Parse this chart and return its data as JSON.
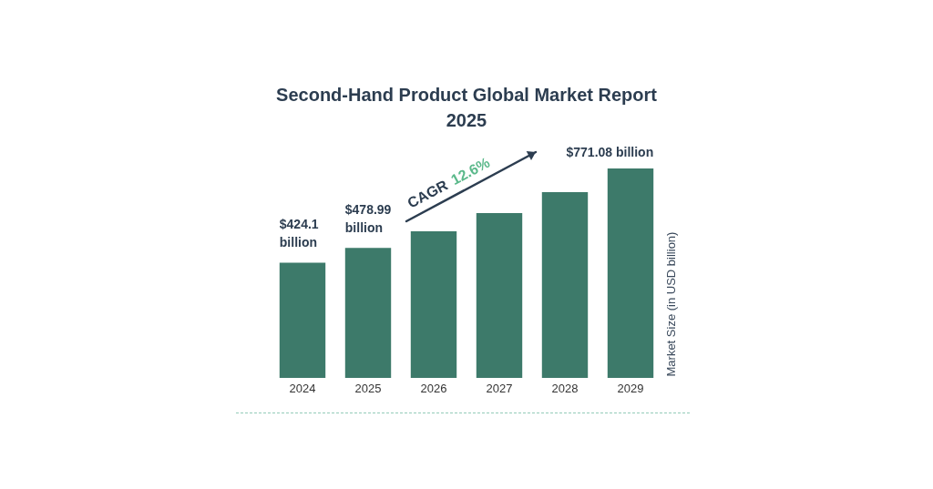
{
  "chart_data": {
    "type": "bar",
    "title": "Second-Hand Product Global Market Report 2025",
    "ylabel": "Market Size (in USD billion)",
    "categories": [
      "2024",
      "2025",
      "2026",
      "2027",
      "2028",
      "2029"
    ],
    "values": [
      424.1,
      478.99,
      540,
      607,
      684,
      771.08
    ],
    "color": "#3d7a6a",
    "value_labels": [
      "$424.1 billion",
      "$478.99 billion",
      null,
      null,
      null,
      "$771.08 billion"
    ],
    "tick_labels": "x",
    "annotations": [
      "CAGR 12.6%"
    ]
  }
}
